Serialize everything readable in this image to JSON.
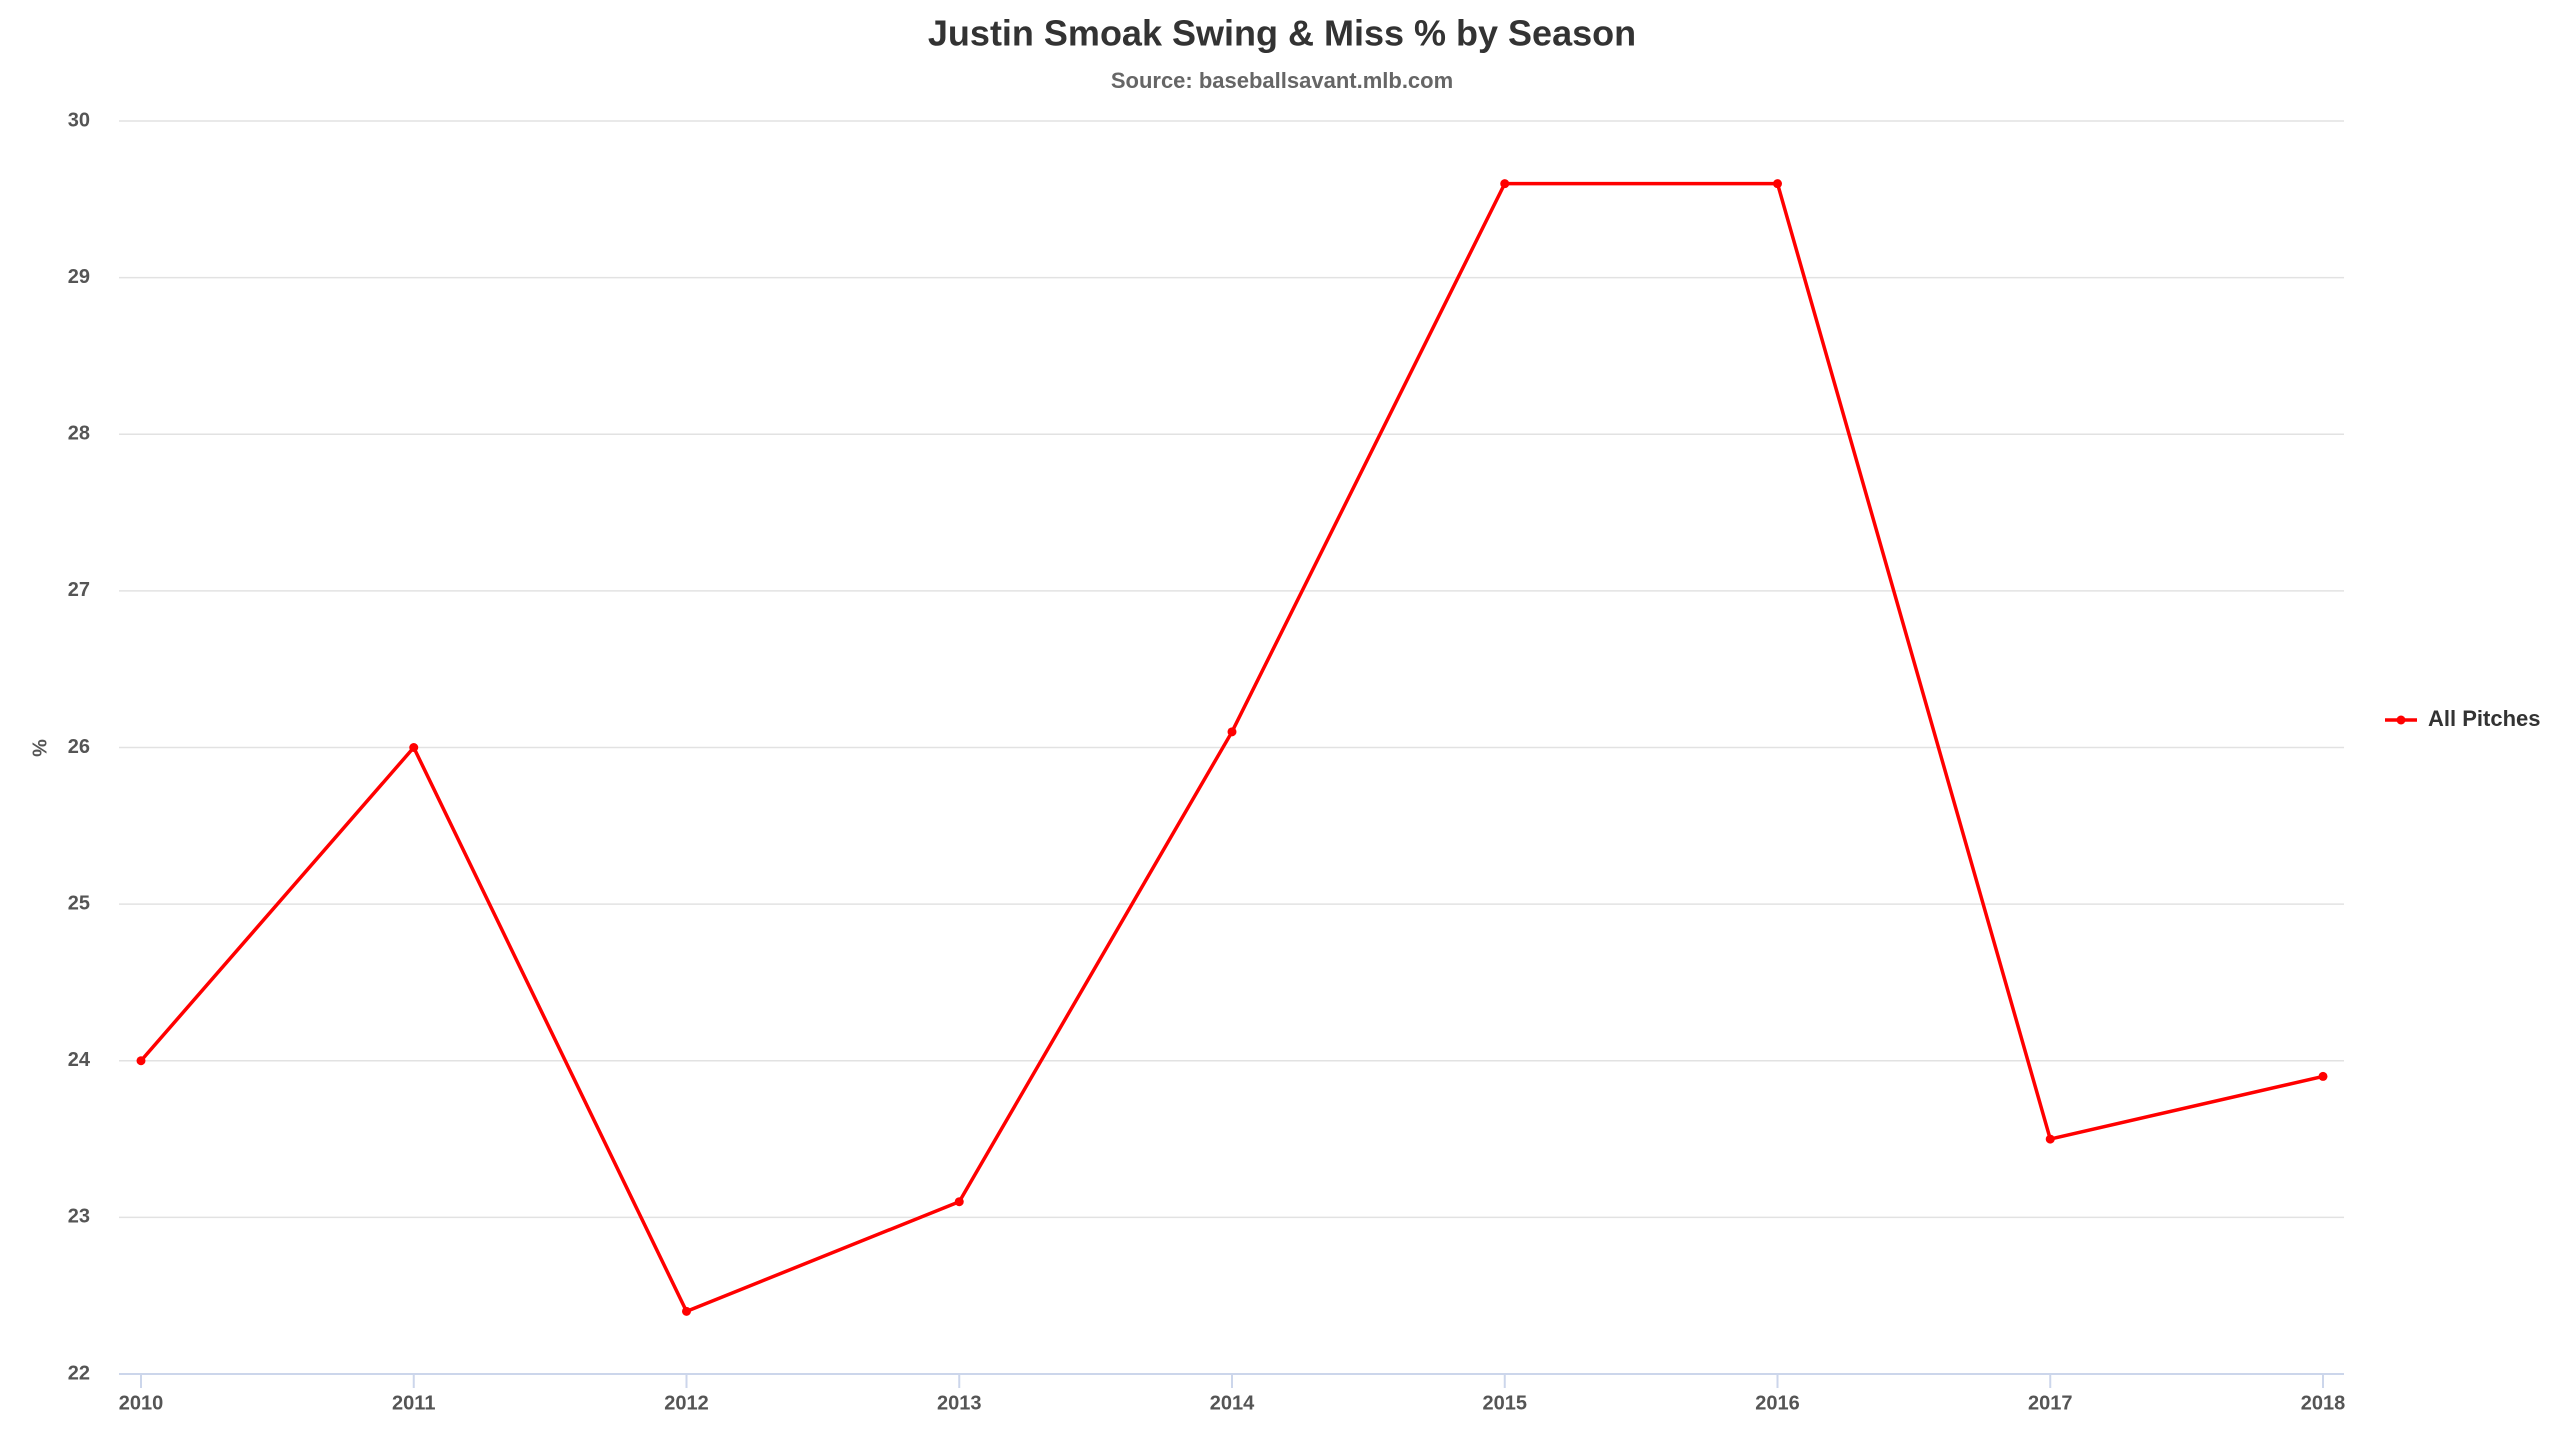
{
  "chart_data": {
    "type": "line",
    "title": "Justin Smoak Swing & Miss % by Season",
    "subtitle": "Source: baseballsavant.mlb.com",
    "y_label": "%",
    "categories": [
      "2010",
      "2011",
      "2012",
      "2013",
      "2014",
      "2015",
      "2016",
      "2017",
      "2018"
    ],
    "series": [
      {
        "name": "All Pitches",
        "color": "#ff0000",
        "values": [
          24.0,
          26.0,
          22.4,
          23.1,
          26.1,
          29.6,
          29.6,
          23.5,
          23.9
        ]
      }
    ],
    "ylim": [
      22,
      30
    ],
    "yticks": [
      22,
      23,
      24,
      25,
      26,
      27,
      28,
      29,
      30
    ],
    "grid": true,
    "legend": "right"
  }
}
